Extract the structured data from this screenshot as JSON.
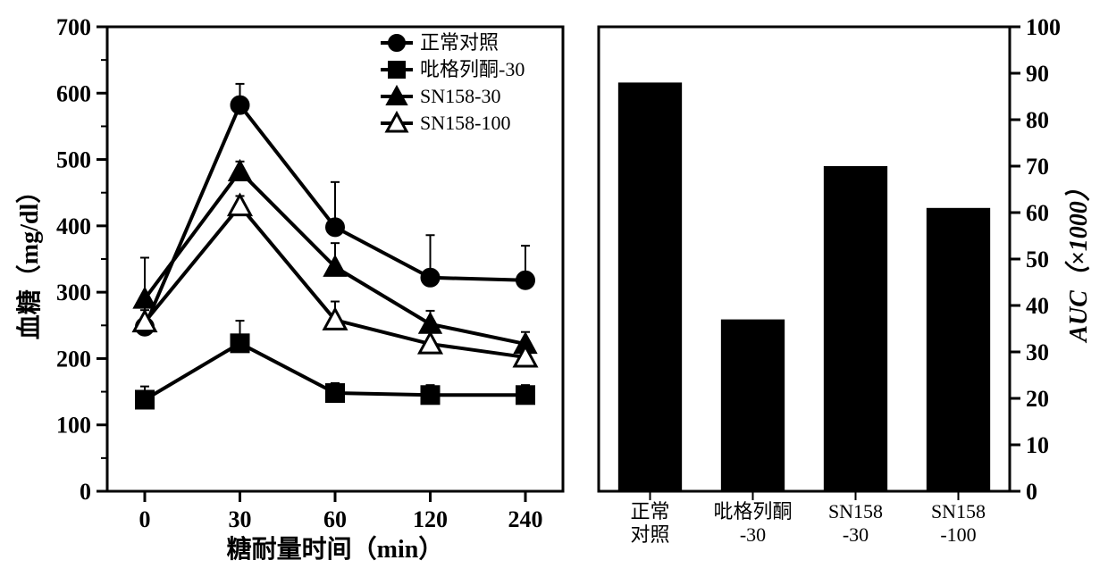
{
  "line_chart": {
    "type": "line",
    "x_categories": [
      "0",
      "30",
      "60",
      "120",
      "240"
    ],
    "y_axis": {
      "min": 0,
      "max": 700,
      "step": 100,
      "label": "血糖（mg/dl）"
    },
    "x_axis": {
      "label": "糖耐量时间（min）"
    },
    "series": [
      {
        "name": "正常对照",
        "marker": "circle-filled",
        "color": "#000000",
        "values": [
          248,
          582,
          398,
          322,
          318
        ],
        "errors": [
          25,
          32,
          68,
          64,
          52
        ]
      },
      {
        "name": "吡格列酮-30",
        "marker": "square-filled",
        "color": "#000000",
        "values": [
          138,
          223,
          148,
          145,
          145
        ],
        "errors": [
          20,
          34,
          15,
          15,
          15
        ]
      },
      {
        "name": "SN158-30",
        "marker": "triangle-filled",
        "color": "#000000",
        "values": [
          290,
          482,
          338,
          252,
          222
        ],
        "errors": [
          62,
          15,
          36,
          20,
          18
        ]
      },
      {
        "name": "SN158-100",
        "marker": "triangle-open",
        "color": "#000000",
        "values": [
          255,
          430,
          258,
          222,
          202
        ],
        "errors": [
          28,
          15,
          28,
          18,
          18
        ]
      }
    ],
    "line_width": 4,
    "marker_size": 10,
    "error_cap_width": 10,
    "error_line_width": 2,
    "axis_line_width": 3,
    "tick_length_major": 12,
    "tick_length_minor": 7,
    "background_color": "#ffffff",
    "y_minor_ticks": [
      50,
      150,
      250,
      350,
      450,
      550,
      650
    ]
  },
  "bar_chart": {
    "type": "bar",
    "categories": [
      {
        "line1": "正常",
        "line2": "对照"
      },
      {
        "line1": "吡格列酮",
        "line2": "-30"
      },
      {
        "line1": "SN158",
        "line2": "-30"
      },
      {
        "line1": "SN158",
        "line2": "-100"
      }
    ],
    "values": [
      88,
      37,
      70,
      61
    ],
    "bar_color": "#000000",
    "y_axis": {
      "min": 0,
      "max": 100,
      "step": 10,
      "label": "AUC（×1000）",
      "side": "right"
    },
    "bar_width_ratio": 0.62,
    "axis_line_width": 3,
    "tick_length": 12,
    "background_color": "#ffffff"
  },
  "colors": {
    "axis": "#000000",
    "text": "#000000",
    "background": "#ffffff"
  },
  "fonts": {
    "axis_label_size": 28,
    "tick_label_size": 26,
    "legend_size": 22
  }
}
